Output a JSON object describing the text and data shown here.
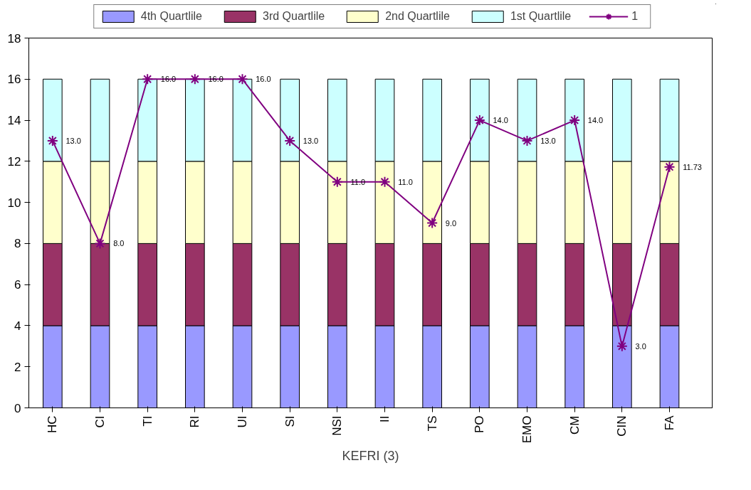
{
  "chart_data": {
    "type": "bar",
    "stacked": true,
    "xlabel": "KEFRI (3)",
    "categories": [
      "HC",
      "CI",
      "TI",
      "RI",
      "UI",
      "SI",
      "NSI",
      "II",
      "TS",
      "PO",
      "EMO",
      "CM",
      "CIN",
      "FA"
    ],
    "series": [
      {
        "name": "4th Quartlile",
        "color": "#9999ff",
        "values": [
          4,
          4,
          4,
          4,
          4,
          4,
          4,
          4,
          4,
          4,
          4,
          4,
          4,
          4
        ]
      },
      {
        "name": "3rd Quartlile",
        "color": "#993366",
        "values": [
          4,
          4,
          4,
          4,
          4,
          4,
          4,
          4,
          4,
          4,
          4,
          4,
          4,
          4
        ]
      },
      {
        "name": "2nd Quartlile",
        "color": "#ffffcc",
        "values": [
          4,
          4,
          4,
          4,
          4,
          4,
          4,
          4,
          4,
          4,
          4,
          4,
          4,
          4
        ]
      },
      {
        "name": "1st Quartlile",
        "color": "#ccffff",
        "values": [
          4,
          4,
          4,
          4,
          4,
          4,
          4,
          4,
          4,
          4,
          4,
          4,
          4,
          4
        ]
      },
      {
        "name": "1",
        "type": "line",
        "color": "#800080",
        "marker": "cross",
        "values": [
          13,
          8,
          16,
          16,
          16,
          13,
          11,
          11,
          9,
          14,
          13,
          14,
          3,
          11.73
        ],
        "value_labels": [
          "13.0",
          "8.0",
          "16.0",
          "16.0",
          "16.0",
          "13.0",
          "11.0",
          "11.0",
          "9.0",
          "14.0",
          "13.0",
          "14.0",
          "3.0",
          "11.73"
        ]
      }
    ],
    "ylim": [
      0,
      18
    ],
    "yticks": [
      0,
      2,
      4,
      6,
      8,
      10,
      12,
      14,
      16,
      18
    ],
    "grid": false,
    "legend": "top"
  }
}
